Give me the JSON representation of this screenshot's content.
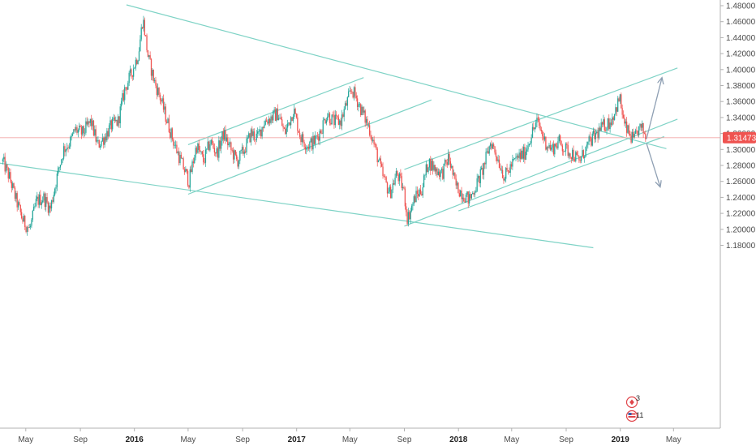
{
  "chart_data": {
    "type": "candlestick",
    "title": "",
    "instrument_note": "USD/CAD style daily candles",
    "xlabel": "",
    "ylabel": "",
    "ylim": [
      1.17,
      1.485
    ],
    "grid": false,
    "legend": "none",
    "x_tick_labels": [
      {
        "label": "May",
        "date": "2015-05-01",
        "bold": false
      },
      {
        "label": "Sep",
        "date": "2015-09-01",
        "bold": false
      },
      {
        "label": "2016",
        "date": "2016-01-01",
        "bold": true
      },
      {
        "label": "May",
        "date": "2016-05-01",
        "bold": false
      },
      {
        "label": "Sep",
        "date": "2016-09-01",
        "bold": false
      },
      {
        "label": "2017",
        "date": "2017-01-01",
        "bold": true
      },
      {
        "label": "May",
        "date": "2017-05-01",
        "bold": false
      },
      {
        "label": "Sep",
        "date": "2017-09-01",
        "bold": false
      },
      {
        "label": "2018",
        "date": "2018-01-01",
        "bold": true
      },
      {
        "label": "May",
        "date": "2018-05-01",
        "bold": false
      },
      {
        "label": "Sep",
        "date": "2018-09-01",
        "bold": false
      },
      {
        "label": "2019",
        "date": "2019-01-01",
        "bold": true
      },
      {
        "label": "May",
        "date": "2019-05-01",
        "bold": false
      }
    ],
    "y_tick_labels": [
      "1.48000",
      "1.46000",
      "1.44000",
      "1.42000",
      "1.40000",
      "1.38000",
      "1.36000",
      "1.34000",
      "1.32000",
      "1.30000",
      "1.28000",
      "1.26000",
      "1.24000",
      "1.22000",
      "1.20000",
      "1.18000"
    ],
    "y_tick_values": [
      1.48,
      1.46,
      1.44,
      1.42,
      1.4,
      1.38,
      1.36,
      1.34,
      1.32,
      1.3,
      1.28,
      1.26,
      1.24,
      1.22,
      1.2,
      1.18
    ],
    "last_price": 1.31473,
    "last_price_label": "1.31473",
    "price_path": [
      [
        "2015-03-10",
        1.285
      ],
      [
        "2015-03-25",
        1.265
      ],
      [
        "2015-04-10",
        1.235
      ],
      [
        "2015-04-25",
        1.21
      ],
      [
        "2015-05-10",
        1.2
      ],
      [
        "2015-05-25",
        1.235
      ],
      [
        "2015-06-10",
        1.24
      ],
      [
        "2015-06-25",
        1.225
      ],
      [
        "2015-07-10",
        1.265
      ],
      [
        "2015-07-25",
        1.3
      ],
      [
        "2015-08-10",
        1.31
      ],
      [
        "2015-08-20",
        1.325
      ],
      [
        "2015-09-05",
        1.32
      ],
      [
        "2015-09-25",
        1.335
      ],
      [
        "2015-10-10",
        1.305
      ],
      [
        "2015-10-25",
        1.315
      ],
      [
        "2015-11-10",
        1.33
      ],
      [
        "2015-11-25",
        1.335
      ],
      [
        "2015-12-10",
        1.375
      ],
      [
        "2015-12-25",
        1.395
      ],
      [
        "2016-01-10",
        1.42
      ],
      [
        "2016-01-20",
        1.465
      ],
      [
        "2016-02-01",
        1.415
      ],
      [
        "2016-02-15",
        1.385
      ],
      [
        "2016-02-28",
        1.365
      ],
      [
        "2016-03-15",
        1.335
      ],
      [
        "2016-04-01",
        1.305
      ],
      [
        "2016-04-15",
        1.285
      ],
      [
        "2016-05-03",
        1.26
      ],
      [
        "2016-05-20",
        1.305
      ],
      [
        "2016-06-05",
        1.285
      ],
      [
        "2016-06-20",
        1.31
      ],
      [
        "2016-07-05",
        1.295
      ],
      [
        "2016-07-20",
        1.32
      ],
      [
        "2016-08-05",
        1.3
      ],
      [
        "2016-08-20",
        1.285
      ],
      [
        "2016-09-05",
        1.3
      ],
      [
        "2016-09-20",
        1.32
      ],
      [
        "2016-10-05",
        1.315
      ],
      [
        "2016-10-20",
        1.335
      ],
      [
        "2016-11-05",
        1.34
      ],
      [
        "2016-11-20",
        1.345
      ],
      [
        "2016-12-05",
        1.32
      ],
      [
        "2016-12-25",
        1.35
      ],
      [
        "2017-01-10",
        1.315
      ],
      [
        "2017-01-25",
        1.305
      ],
      [
        "2017-02-10",
        1.31
      ],
      [
        "2017-02-25",
        1.325
      ],
      [
        "2017-03-10",
        1.345
      ],
      [
        "2017-03-25",
        1.335
      ],
      [
        "2017-04-10",
        1.335
      ],
      [
        "2017-04-25",
        1.36
      ],
      [
        "2017-05-05",
        1.375
      ],
      [
        "2017-05-15",
        1.365
      ],
      [
        "2017-05-30",
        1.345
      ],
      [
        "2017-06-15",
        1.325
      ],
      [
        "2017-06-30",
        1.295
      ],
      [
        "2017-07-15",
        1.265
      ],
      [
        "2017-07-30",
        1.245
      ],
      [
        "2017-08-15",
        1.27
      ],
      [
        "2017-08-30",
        1.25
      ],
      [
        "2017-09-08",
        1.213
      ],
      [
        "2017-09-25",
        1.24
      ],
      [
        "2017-10-10",
        1.25
      ],
      [
        "2017-10-25",
        1.285
      ],
      [
        "2017-11-10",
        1.275
      ],
      [
        "2017-11-25",
        1.27
      ],
      [
        "2017-12-10",
        1.29
      ],
      [
        "2017-12-25",
        1.255
      ],
      [
        "2018-01-10",
        1.245
      ],
      [
        "2018-01-25",
        1.237
      ],
      [
        "2018-02-10",
        1.255
      ],
      [
        "2018-02-25",
        1.275
      ],
      [
        "2018-03-15",
        1.31
      ],
      [
        "2018-03-30",
        1.29
      ],
      [
        "2018-04-15",
        1.265
      ],
      [
        "2018-04-30",
        1.28
      ],
      [
        "2018-05-15",
        1.29
      ],
      [
        "2018-05-30",
        1.295
      ],
      [
        "2018-06-15",
        1.32
      ],
      [
        "2018-06-28",
        1.335
      ],
      [
        "2018-07-15",
        1.31
      ],
      [
        "2018-07-30",
        1.3
      ],
      [
        "2018-08-15",
        1.31
      ],
      [
        "2018-08-30",
        1.3
      ],
      [
        "2018-09-15",
        1.295
      ],
      [
        "2018-09-30",
        1.285
      ],
      [
        "2018-10-10",
        1.295
      ],
      [
        "2018-10-25",
        1.31
      ],
      [
        "2018-11-10",
        1.32
      ],
      [
        "2018-11-25",
        1.33
      ],
      [
        "2018-12-10",
        1.335
      ],
      [
        "2018-12-31",
        1.364
      ],
      [
        "2019-01-10",
        1.33
      ],
      [
        "2019-01-20",
        1.32
      ],
      [
        "2019-02-01",
        1.31
      ],
      [
        "2019-02-10",
        1.325
      ],
      [
        "2019-02-20",
        1.325
      ],
      [
        "2019-03-01",
        1.315
      ]
    ],
    "trendlines": [
      {
        "name": "long-down-upper",
        "p1": [
          "2015-12-14",
          1.481
        ],
        "p2": [
          "2019-04-15",
          1.301
        ]
      },
      {
        "name": "long-down-lower",
        "p1": [
          "2015-03-01",
          1.283
        ],
        "p2": [
          "2018-11-01",
          1.177
        ]
      },
      {
        "name": "channel-2016-lower",
        "p1": [
          "2016-05-01",
          1.244
        ],
        "p2": [
          "2017-11-01",
          1.362
        ]
      },
      {
        "name": "channel-2016-upper",
        "p1": [
          "2016-05-01",
          1.306
        ],
        "p2": [
          "2017-06-01",
          1.39
        ]
      },
      {
        "name": "channel-2018-upper",
        "p1": [
          "2017-09-01",
          1.275
        ],
        "p2": [
          "2019-05-10",
          1.402
        ]
      },
      {
        "name": "channel-2018-lower",
        "p1": [
          "2017-09-01",
          1.204
        ],
        "p2": [
          "2019-05-10",
          1.338
        ]
      },
      {
        "name": "channel-2018-inner",
        "p1": [
          "2018-01-01",
          1.223
        ],
        "p2": [
          "2019-04-10",
          1.316
        ]
      }
    ],
    "projection_arrows": [
      {
        "name": "arrow-up",
        "from": [
          "2019-03-01",
          1.313
        ],
        "to": [
          "2019-04-05",
          1.39
        ]
      },
      {
        "name": "arrow-down",
        "from": [
          "2019-03-01",
          1.308
        ],
        "to": [
          "2019-04-01",
          1.253
        ]
      }
    ],
    "event_markers": [
      {
        "name": "ca-flag-marker",
        "count": "3"
      },
      {
        "name": "us-flag-marker",
        "count": "11"
      }
    ],
    "colors": {
      "up": "#26a69a",
      "down": "#ef5350",
      "trendline": "#7fd3c6",
      "arrow": "#8e9fb3",
      "price_line": "#f2a6a6",
      "price_tag": "#ef5350",
      "axis": "#b0b0b0",
      "tick_text": "#4a4a4a"
    }
  }
}
